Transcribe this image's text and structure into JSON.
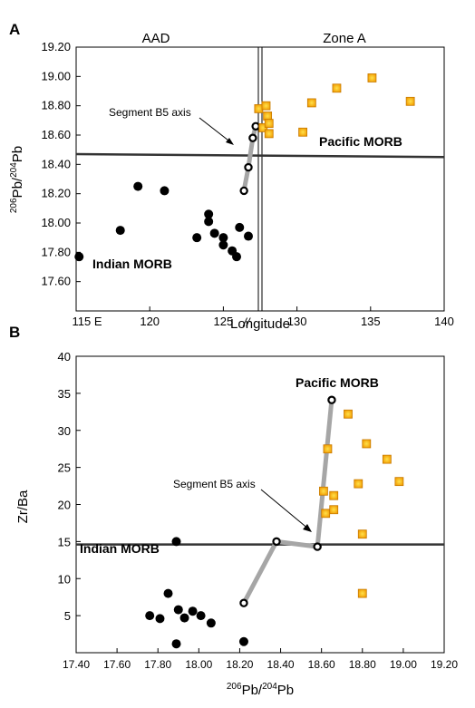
{
  "chart_data": [
    {
      "panel": "A",
      "type": "scatter",
      "xlabel": "Longitude",
      "ylabel": "206Pb/204Pb",
      "xlim": [
        115,
        140
      ],
      "ylim": [
        17.4,
        19.2
      ],
      "x_ticks": [
        "115 E",
        "120",
        "125",
        "130",
        "135",
        "140"
      ],
      "y_ticks": [
        "17.60",
        "17.80",
        "18.00",
        "18.20",
        "18.40",
        "18.60",
        "18.80",
        "19.00",
        "19.20"
      ],
      "region_labels": [
        "AAD",
        "Zone A"
      ],
      "annotations": {
        "segment": "Segment B5 axis",
        "pacific": "Pacific MORB",
        "indian": "Indian MORB"
      },
      "separator_x": 127.5,
      "break_marker": "//",
      "divider_line": {
        "y_start": 18.47,
        "y_end": 18.45
      },
      "series": [
        {
          "marker": "filled-circle",
          "color": "#000000",
          "points": [
            [
              115.2,
              17.77
            ],
            [
              118.0,
              17.95
            ],
            [
              119.2,
              18.25
            ],
            [
              121.0,
              18.22
            ],
            [
              123.2,
              17.9
            ],
            [
              124.0,
              18.06
            ],
            [
              124.0,
              18.01
            ],
            [
              124.4,
              17.93
            ],
            [
              125.0,
              17.9
            ],
            [
              125.0,
              17.85
            ],
            [
              125.6,
              17.81
            ],
            [
              125.9,
              17.77
            ],
            [
              126.1,
              17.97
            ],
            [
              126.7,
              17.91
            ]
          ]
        },
        {
          "marker": "open-circle",
          "color": "#000000",
          "points": [
            [
              126.4,
              18.22
            ],
            [
              126.7,
              18.38
            ],
            [
              127.0,
              18.58
            ],
            [
              127.2,
              18.66
            ]
          ]
        },
        {
          "marker": "square",
          "color": "#f5a800",
          "points": [
            [
              127.4,
              18.78
            ],
            [
              127.7,
              18.65
            ],
            [
              127.9,
              18.8
            ],
            [
              128.0,
              18.73
            ],
            [
              128.1,
              18.68
            ],
            [
              128.1,
              18.61
            ],
            [
              130.4,
              18.62
            ],
            [
              131.0,
              18.82
            ],
            [
              132.7,
              18.92
            ],
            [
              135.1,
              18.99
            ],
            [
              137.7,
              18.83
            ]
          ]
        }
      ],
      "axis_trace": [
        [
          126.4,
          18.22
        ],
        [
          126.7,
          18.38
        ],
        [
          127.0,
          18.58
        ],
        [
          127.2,
          18.66
        ]
      ]
    },
    {
      "panel": "B",
      "type": "scatter",
      "xlabel": "206Pb/204Pb",
      "ylabel": "Zr/Ba",
      "xlim": [
        17.4,
        19.2
      ],
      "ylim": [
        0,
        40
      ],
      "x_ticks": [
        "17.40",
        "17.60",
        "17.80",
        "18.00",
        "18.20",
        "18.40",
        "18.60",
        "18.80",
        "19.00",
        "19.20"
      ],
      "y_ticks": [
        "5",
        "10",
        "15",
        "20",
        "25",
        "30",
        "35",
        "40"
      ],
      "annotations": {
        "segment": "Segment B5 axis",
        "pacific": "Pacific MORB",
        "indian": "Indian MORB"
      },
      "divider_line": {
        "y": 14.6
      },
      "series": [
        {
          "marker": "filled-circle",
          "color": "#000000",
          "points": [
            [
              17.76,
              5.0
            ],
            [
              17.81,
              4.6
            ],
            [
              17.85,
              8.0
            ],
            [
              17.89,
              15.0
            ],
            [
              17.9,
              5.8
            ],
            [
              17.93,
              4.7
            ],
            [
              17.97,
              5.6
            ],
            [
              18.01,
              5.0
            ],
            [
              18.06,
              4.0
            ],
            [
              17.89,
              1.2
            ],
            [
              18.22,
              1.5
            ]
          ]
        },
        {
          "marker": "open-circle",
          "color": "#000000",
          "points": [
            [
              18.22,
              6.7
            ],
            [
              18.38,
              15.0
            ],
            [
              18.58,
              14.3
            ],
            [
              18.65,
              34.1
            ]
          ]
        },
        {
          "marker": "square",
          "color": "#f5a800",
          "points": [
            [
              18.61,
              21.8
            ],
            [
              18.62,
              18.8
            ],
            [
              18.63,
              27.5
            ],
            [
              18.66,
              21.2
            ],
            [
              18.66,
              19.3
            ],
            [
              18.73,
              32.2
            ],
            [
              18.78,
              22.8
            ],
            [
              18.8,
              16.0
            ],
            [
              18.8,
              8.0
            ],
            [
              18.82,
              28.2
            ],
            [
              18.92,
              26.1
            ],
            [
              18.98,
              23.1
            ]
          ]
        }
      ],
      "axis_trace": [
        [
          18.22,
          6.7
        ],
        [
          18.38,
          15.0
        ],
        [
          18.58,
          14.3
        ],
        [
          18.65,
          34.1
        ]
      ]
    }
  ]
}
